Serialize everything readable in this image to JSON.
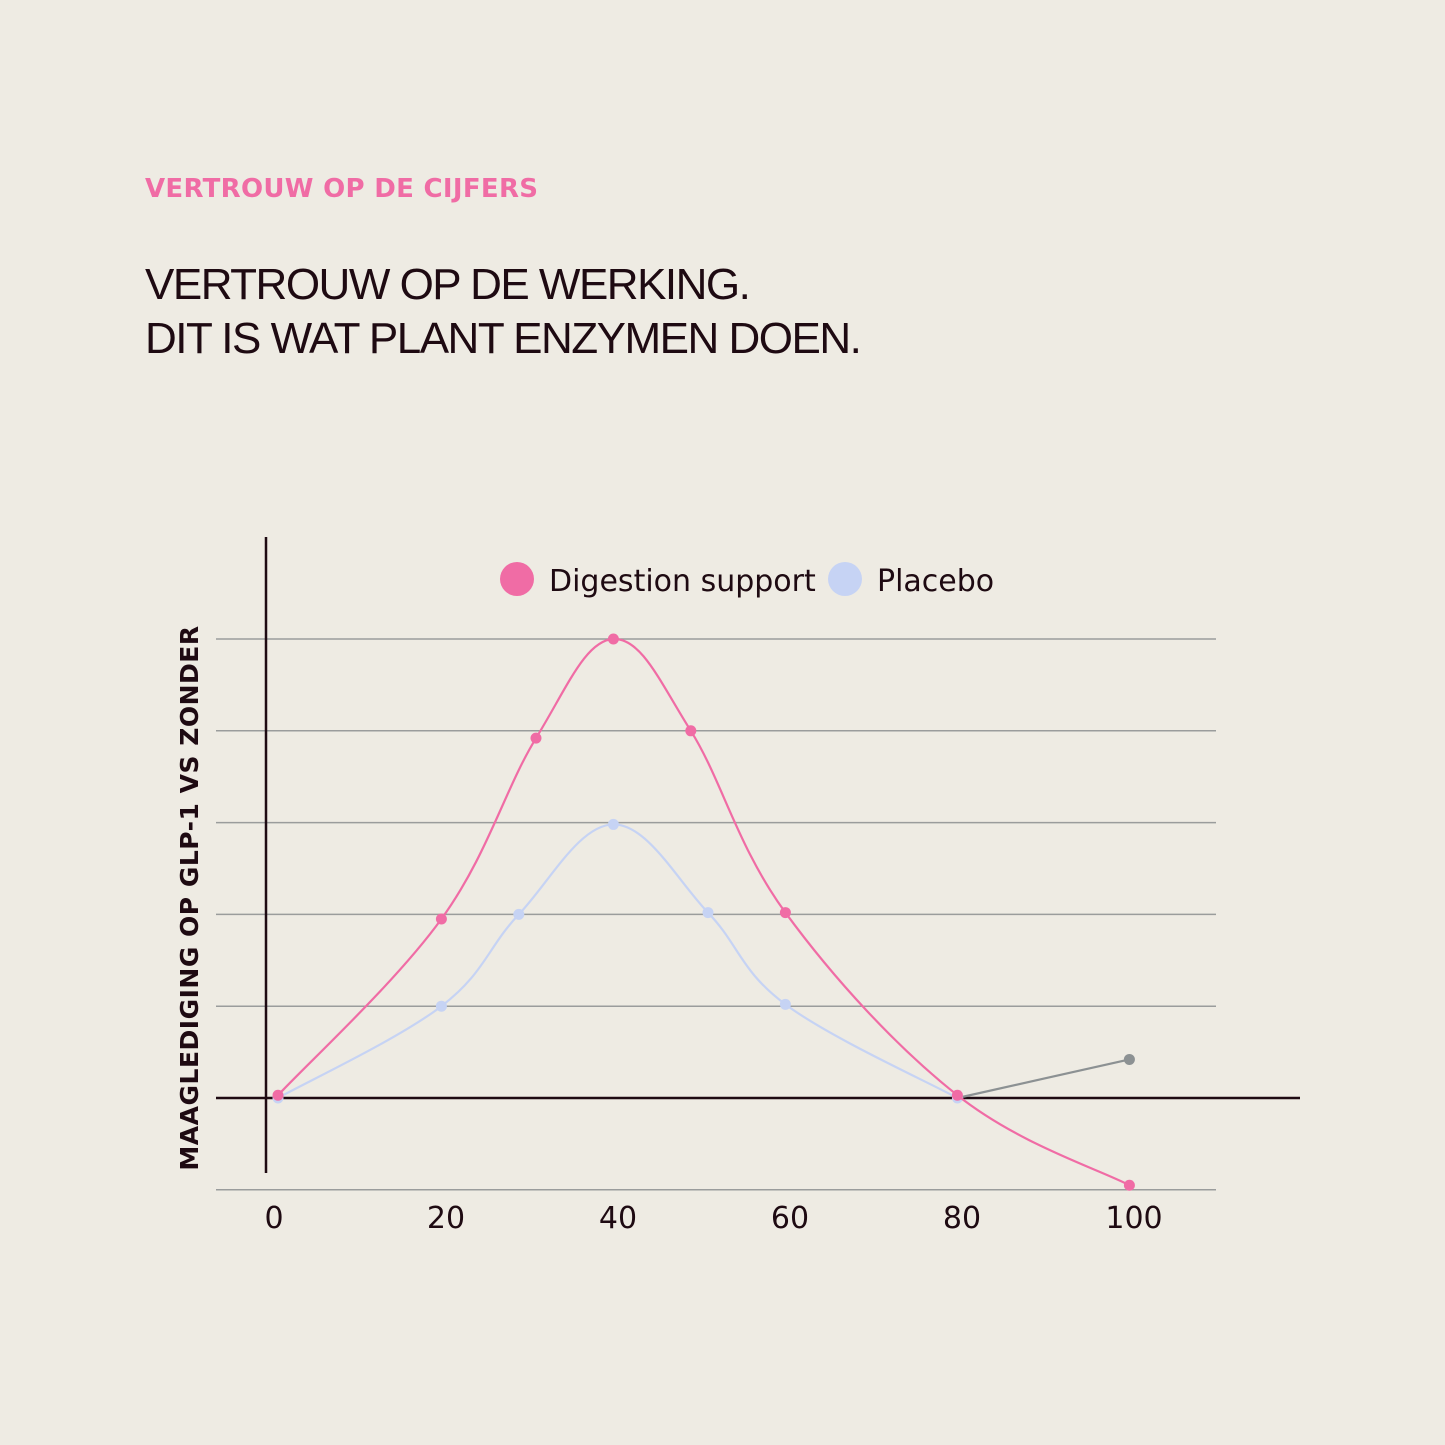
{
  "eyebrow": "VERTROUW OP DE CIJFERS",
  "headline": {
    "line1": "VERTROUW OP DE WERKING.",
    "line2": "DIT IS WAT PLANT ENZYMEN DOEN."
  },
  "chart_data": {
    "type": "line",
    "title": "",
    "xlabel": "",
    "ylabel": "MAAGLEDIGING OP GLP-1 VS ZONDER",
    "xlim": [
      0,
      100
    ],
    "ylim": [
      -1,
      5
    ],
    "x_ticks": [
      "0",
      "20",
      "40",
      "60",
      "80",
      "100"
    ],
    "grid": true,
    "legend_position": "top",
    "series": [
      {
        "name": "Digestion support",
        "color": "#F06CA5",
        "points": [
          [
            0,
            0.03
          ],
          [
            19,
            1.95
          ],
          [
            30,
            3.92
          ],
          [
            39,
            5.0
          ],
          [
            48,
            4.0
          ],
          [
            59,
            2.02
          ],
          [
            79,
            0.03
          ],
          [
            99,
            -0.95
          ]
        ]
      },
      {
        "name": "Placebo",
        "color": "#C6D3F4",
        "points": [
          [
            0,
            0.0
          ],
          [
            19,
            1.0
          ],
          [
            28,
            2.0
          ],
          [
            39,
            2.98
          ],
          [
            50,
            2.02
          ],
          [
            59,
            1.02
          ],
          [
            79,
            0.0
          ]
        ]
      },
      {
        "color": "#8C9193",
        "points": [
          [
            79,
            0.0
          ],
          [
            99,
            0.42
          ]
        ]
      }
    ]
  }
}
